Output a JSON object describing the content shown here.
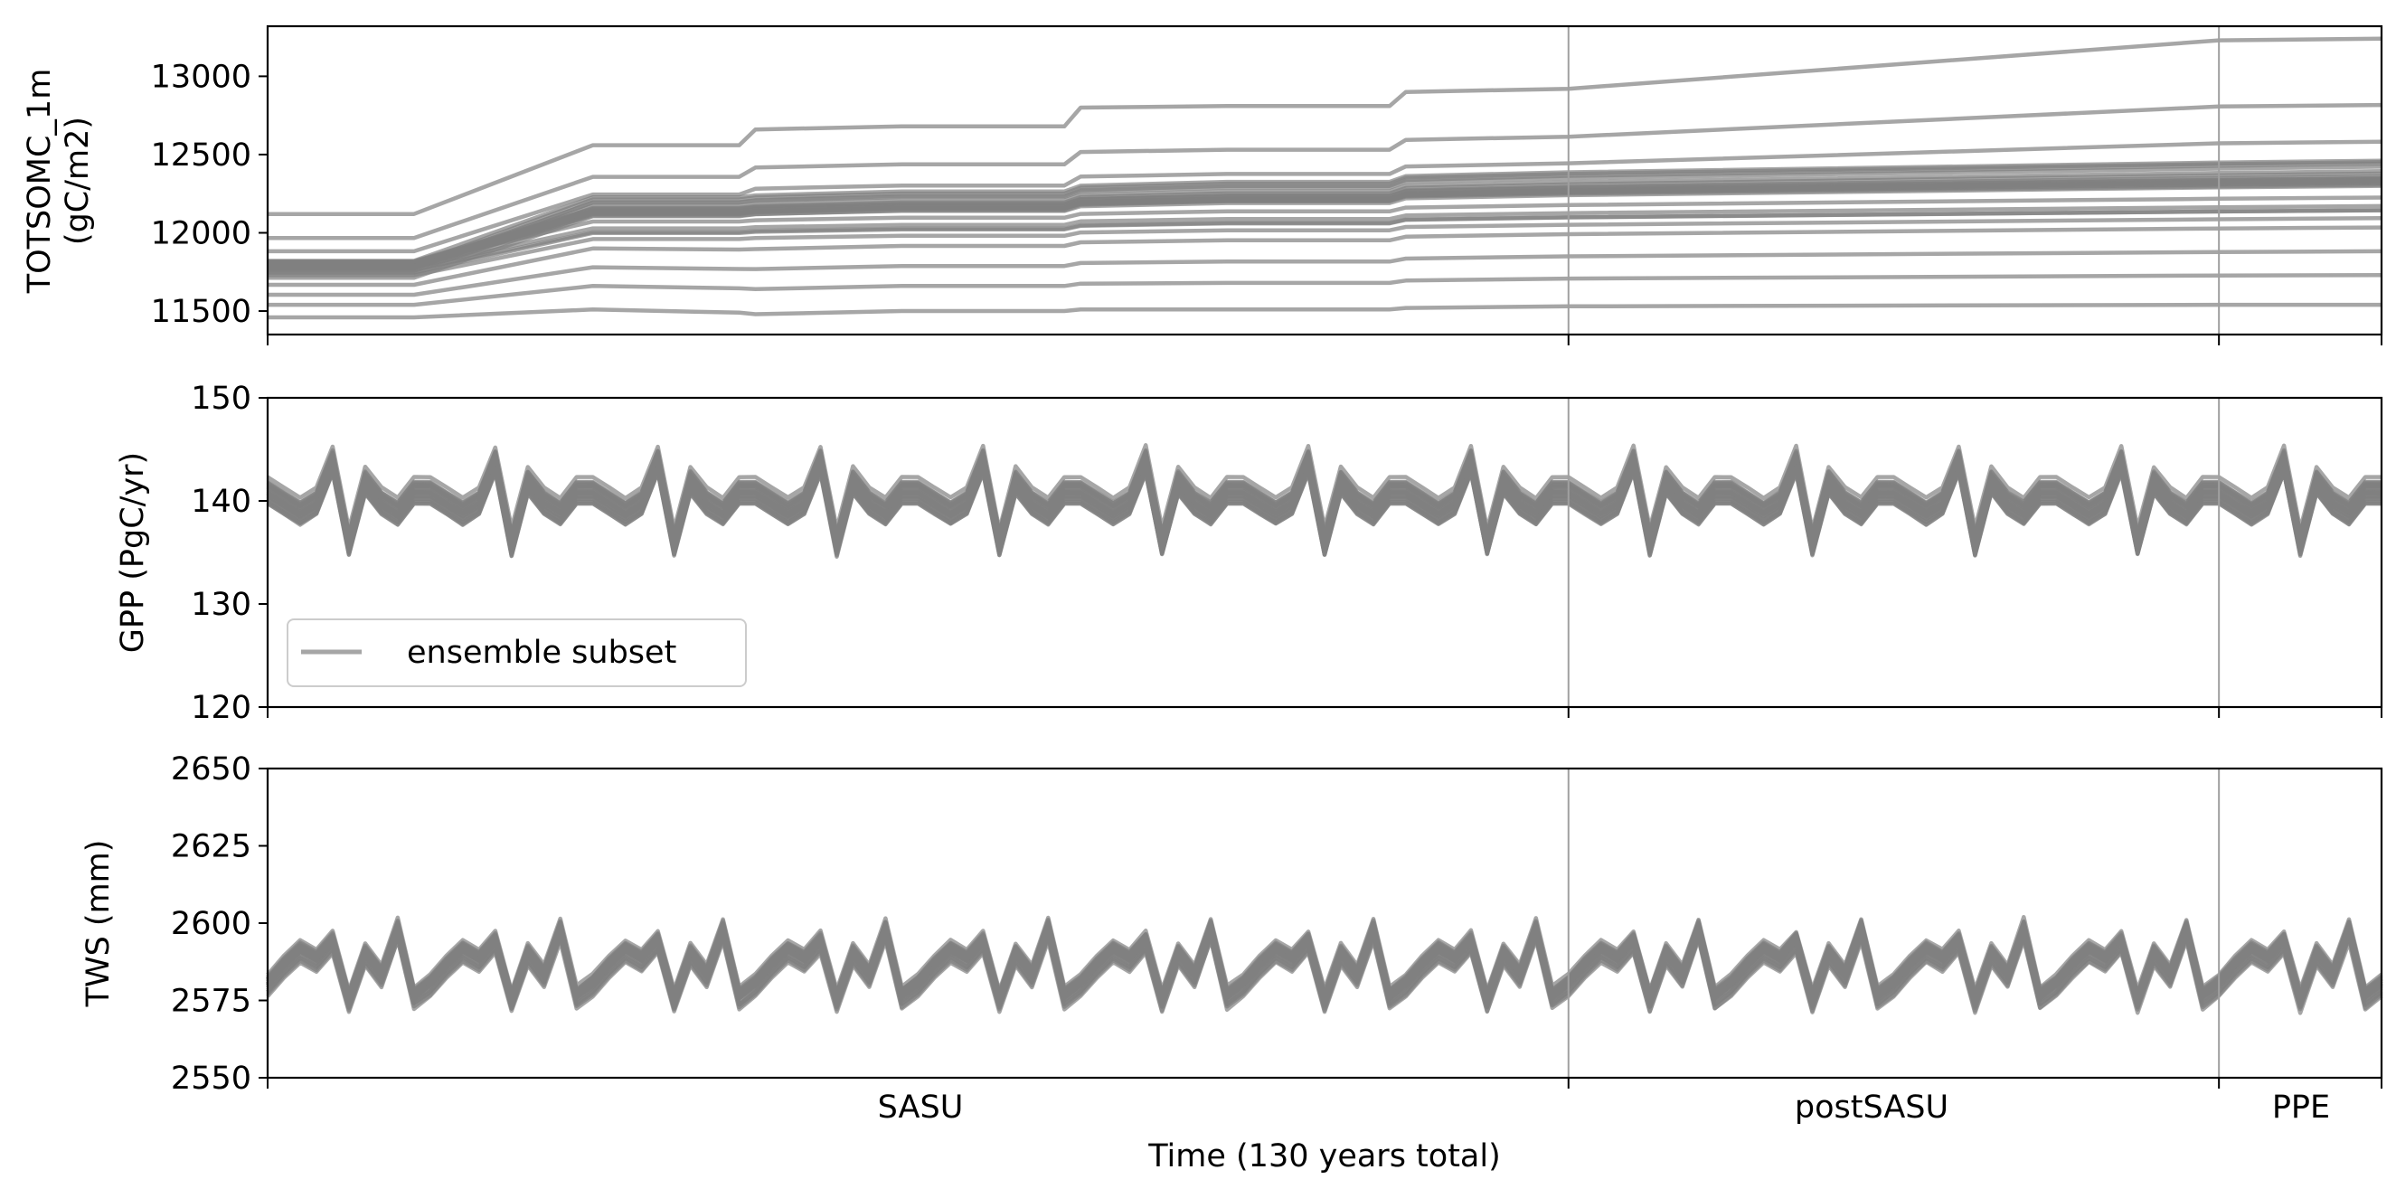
{
  "figure": {
    "xlabel": "Time (130 years total)",
    "phases": [
      {
        "label": "SASU",
        "start": 0,
        "end": 80
      },
      {
        "label": "postSASU",
        "start": 80,
        "end": 120
      },
      {
        "label": "PPE",
        "start": 120,
        "end": 130
      }
    ],
    "legend_label": "ensemble subset",
    "line_color": "#808080",
    "divider_color": "#a0a0a0"
  },
  "chart_data": [
    {
      "type": "line",
      "panel": "top",
      "ylabel_line1": "TOTSOMC_1m",
      "ylabel_line2": "(gC/m2)",
      "xlim": [
        0,
        130
      ],
      "ylim": [
        11350,
        13320
      ],
      "yticks": [
        11500,
        12000,
        12500,
        13000
      ],
      "yticklabels": [
        "11500",
        "12000",
        "12500",
        "13000"
      ],
      "step_times": [
        0,
        9,
        20,
        29,
        30,
        39,
        49,
        50,
        59,
        69,
        70,
        80,
        120,
        130
      ],
      "representative_series": [
        {
          "name": "",
          "values": [
            12120,
            12120,
            12560,
            12560,
            12660,
            12680,
            12680,
            12800,
            12810,
            12810,
            12900,
            12920,
            13230,
            13240
          ]
        },
        {
          "name": "",
          "values": [
            11780,
            11780,
            12110,
            12110,
            12120,
            12140,
            12140,
            12170,
            12190,
            12190,
            12220,
            12240,
            12290,
            12300
          ]
        },
        {
          "name": "",
          "values": [
            11460,
            11460,
            11510,
            11490,
            11480,
            11500,
            11500,
            11510,
            11510,
            11510,
            11520,
            11530,
            11540,
            11540
          ]
        }
      ],
      "legend": false
    },
    {
      "type": "line",
      "panel": "middle",
      "ylabel": "GPP (PgC/yr)",
      "xlim": [
        0,
        130
      ],
      "ylim": [
        120,
        150
      ],
      "yticks": [
        120,
        130,
        140,
        150
      ],
      "yticklabels": [
        "120",
        "130",
        "140",
        "150"
      ],
      "cycle_length_years": 10,
      "representative_series": [
        {
          "name": "",
          "values": [
            141,
            140,
            139,
            140,
            144,
            136,
            142,
            140,
            139,
            141,
            145
          ]
        }
      ],
      "legend": true,
      "legend_location": "lower left"
    },
    {
      "type": "line",
      "panel": "bottom",
      "ylabel": "TWS (mm)",
      "xlim": [
        0,
        130
      ],
      "ylim": [
        2550,
        2650
      ],
      "yticks": [
        2550,
        2575,
        2600,
        2625,
        2650
      ],
      "yticklabels": [
        "2550",
        "2575",
        "2600",
        "2625",
        "2650"
      ],
      "cycle_length_years": 10,
      "representative_series": [
        {
          "name": "",
          "values": [
            2580,
            2586,
            2591,
            2588,
            2594,
            2575,
            2590,
            2583,
            2598,
            2576,
            2585
          ]
        }
      ],
      "legend": false
    }
  ]
}
